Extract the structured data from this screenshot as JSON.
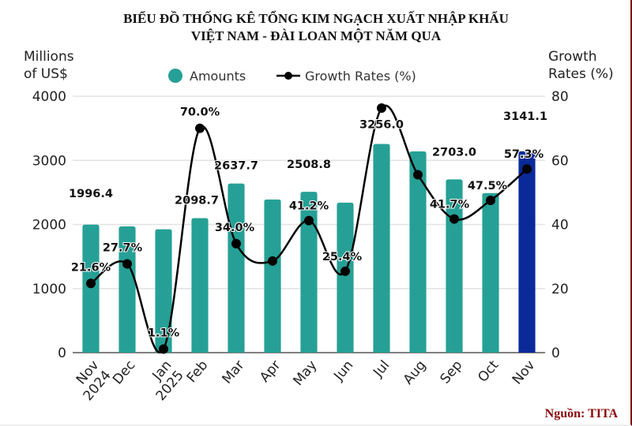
{
  "chart_data": {
    "type": "bar+line",
    "title_lines": [
      "BIỂU ĐỒ THỐNG KÊ TỔNG KIM NGẠCH XUẤT NHẬP KHẨU",
      "VIỆT NAM - ĐÀI LOAN MỘT NĂM QUA"
    ],
    "ylabel_left": [
      "Millions",
      "of US$"
    ],
    "ylabel_right": [
      "Growth",
      "Rates (%)"
    ],
    "ylim_left": [
      0,
      4000
    ],
    "ylim_right": [
      0,
      80
    ],
    "yticks_left": [
      "0",
      "1000",
      "2000",
      "3000",
      "4000"
    ],
    "yticks_right": [
      "0",
      "20",
      "40",
      "60",
      "80"
    ],
    "grid": true,
    "legend_position": "top",
    "categories": [
      [
        "Nov",
        "2024"
      ],
      [
        "Dec"
      ],
      [
        "Jan",
        "2025"
      ],
      [
        "Feb"
      ],
      [
        "Mar"
      ],
      [
        "Apr"
      ],
      [
        "May"
      ],
      [
        "Jun"
      ],
      [
        "Jul"
      ],
      [
        "Aug"
      ],
      [
        "Sep"
      ],
      [
        "Oct"
      ],
      [
        "Nov"
      ]
    ],
    "series": [
      {
        "name": "Amounts",
        "type": "bar",
        "axis": "left",
        "color": "#26a096",
        "highlight_color": "#0a2a9a",
        "values": [
          1996.4,
          1970,
          1925,
          2098.7,
          2637.7,
          2390,
          2508.8,
          2340,
          3256.0,
          3140,
          2703.0,
          2490,
          3141.1
        ],
        "labels": [
          "1996.4",
          "",
          "",
          "2098.7",
          "2637.7",
          "",
          "2508.8",
          "",
          "3256.0",
          "",
          "2703.0",
          "",
          "3141.1"
        ]
      },
      {
        "name": "Growth Rates (%)",
        "type": "line",
        "axis": "right",
        "color": "#000000",
        "values": [
          21.6,
          27.7,
          1.1,
          70.0,
          34.0,
          28.6,
          41.2,
          25.4,
          76.3,
          55.5,
          41.7,
          47.5,
          57.3
        ],
        "labels": [
          "21.6%",
          "27.7%",
          "1.1%",
          "70.0%",
          "34.0%",
          "",
          "41.2%",
          "25.4%",
          "",
          "",
          "41.7%",
          "47.5%",
          "57.3%"
        ]
      }
    ],
    "source": "Nguồn: TITA"
  }
}
